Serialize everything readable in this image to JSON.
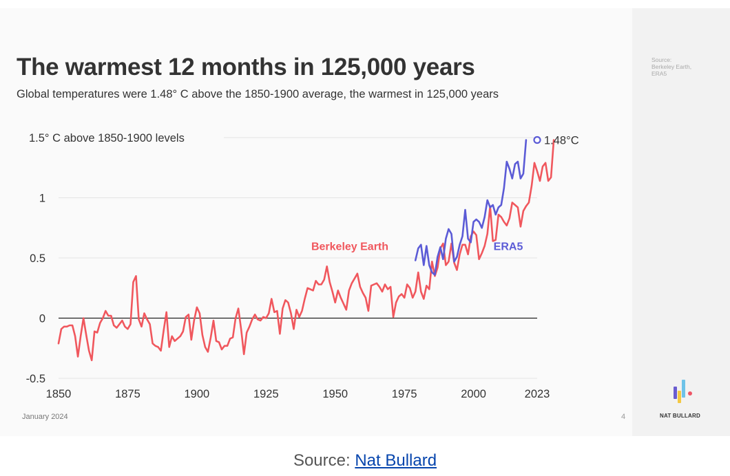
{
  "slide": {
    "title": "The warmest 12 months in 125,000 years",
    "subtitle": "Global temperatures were 1.48° C above the 1850-1900 average, the warmest in 125,000 years",
    "footer_date": "January 2024",
    "page_number": "4"
  },
  "sidebar": {
    "source_lines": [
      "Source:",
      "Berkeley Earth,",
      "ERA5"
    ],
    "brand": "NAT BULLARD"
  },
  "caption": {
    "prefix": "Source:",
    "link_text": "Nat Bullard"
  },
  "colors": {
    "berkeley": "#f0575d",
    "era5": "#5b5bd6",
    "text": "#333333",
    "grid": "#e4e4e4",
    "baseline": "#222222",
    "logo_purple": "#6a5cd0",
    "logo_blue": "#6ec3e8",
    "logo_yellow": "#f4c842",
    "logo_red": "#ee5566"
  },
  "chart_data": {
    "type": "line",
    "title": "The warmest 12 months in 125,000 years",
    "xlabel": "",
    "ylabel": "",
    "xlim": [
      1850,
      2023
    ],
    "ylim": [
      -0.5,
      1.5
    ],
    "x_ticks": [
      1850,
      1875,
      1900,
      1925,
      1950,
      1975,
      2000,
      2023
    ],
    "x_tick_labels": [
      "1850",
      "1875",
      "1900",
      "1925",
      "1950",
      "1975",
      "2000",
      "2023"
    ],
    "y_ticks": [
      -0.5,
      0,
      0.5,
      1,
      1.5
    ],
    "y_tick_labels": [
      "-0.5",
      "0",
      "0.5",
      "1",
      "1.5° C above 1850-1900 levels"
    ],
    "series": [
      {
        "name": "Berkeley Earth",
        "x_start": 1850,
        "values": [
          -0.21,
          -0.09,
          -0.07,
          -0.07,
          -0.06,
          -0.06,
          -0.15,
          -0.32,
          -0.15,
          0.0,
          -0.14,
          -0.27,
          -0.35,
          -0.11,
          -0.12,
          -0.04,
          0.0,
          0.06,
          0.02,
          0.02,
          -0.06,
          -0.08,
          -0.05,
          -0.02,
          -0.07,
          -0.09,
          -0.05,
          0.3,
          0.35,
          -0.01,
          -0.07,
          0.04,
          -0.01,
          -0.05,
          -0.21,
          -0.23,
          -0.24,
          -0.27,
          -0.1,
          0.05,
          -0.24,
          -0.15,
          -0.19,
          -0.17,
          -0.15,
          -0.11,
          0.01,
          0.03,
          -0.18,
          -0.02,
          0.09,
          0.04,
          -0.14,
          -0.24,
          -0.28,
          -0.16,
          -0.02,
          -0.19,
          -0.2,
          -0.26,
          -0.23,
          -0.23,
          -0.17,
          -0.16,
          0.0,
          0.08,
          -0.09,
          -0.3,
          -0.12,
          -0.07,
          -0.01,
          0.03,
          -0.01,
          -0.02,
          0.01,
          0.0,
          0.04,
          0.16,
          0.05,
          0.06,
          -0.13,
          0.08,
          0.15,
          0.13,
          0.04,
          -0.09,
          0.07,
          0.01,
          0.06,
          0.16,
          0.25,
          0.24,
          0.23,
          0.31,
          0.28,
          0.28,
          0.32,
          0.43,
          0.3,
          0.22,
          0.13,
          0.23,
          0.17,
          0.12,
          0.07,
          0.23,
          0.29,
          0.33,
          0.37,
          0.26,
          0.21,
          0.17,
          0.06,
          0.27,
          0.28,
          0.29,
          0.26,
          0.22,
          0.28,
          0.24,
          0.26,
          0.01,
          0.13,
          0.18,
          0.2,
          0.17,
          0.28,
          0.25,
          0.17,
          0.22,
          0.38,
          0.22,
          0.16,
          0.27,
          0.24,
          0.47,
          0.35,
          0.42,
          0.58,
          0.62,
          0.44,
          0.47,
          0.62,
          0.46,
          0.4,
          0.53,
          0.61,
          0.61,
          0.53,
          0.68,
          0.72,
          0.69,
          0.49,
          0.54,
          0.6,
          0.7,
          0.93,
          0.64,
          0.65,
          0.86,
          0.84,
          0.8,
          0.77,
          0.83,
          0.96,
          0.94,
          0.92,
          0.76,
          0.89,
          0.93,
          0.96,
          1.1,
          1.29,
          1.22,
          1.14,
          1.26,
          1.29,
          1.14,
          1.17,
          1.48
        ]
      },
      {
        "name": "ERA5",
        "x_start": 1979,
        "values": [
          0.48,
          0.58,
          0.61,
          0.44,
          0.6,
          0.44,
          0.38,
          0.36,
          0.51,
          0.59,
          0.49,
          0.66,
          0.74,
          0.7,
          0.47,
          0.51,
          0.61,
          0.68,
          0.9,
          0.66,
          0.63,
          0.8,
          0.82,
          0.8,
          0.75,
          0.84,
          0.98,
          0.92,
          0.94,
          0.86,
          0.92,
          0.94,
          1.08,
          1.3,
          1.24,
          1.16,
          1.28,
          1.3,
          1.16,
          1.2,
          1.48
        ]
      }
    ],
    "annotations": [
      {
        "text": "Berkeley Earth",
        "series": "Berkeley Earth"
      },
      {
        "text": "ERA5",
        "series": "ERA5"
      },
      {
        "text": "1.48°C",
        "x": 2023,
        "y": 1.48
      }
    ]
  }
}
